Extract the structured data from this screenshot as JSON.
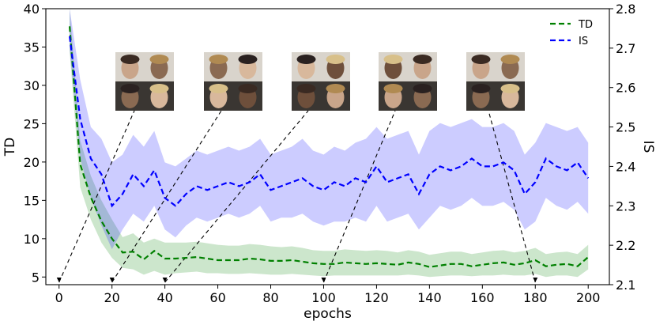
{
  "chart_data": {
    "type": "line",
    "xlabel": "epochs",
    "ylabel_left": "TD",
    "ylabel_right": "IS",
    "xlim": [
      -5,
      208
    ],
    "ylim_left": [
      4,
      40
    ],
    "ylim_right": [
      2.1,
      2.8
    ],
    "x_ticks": [
      0,
      20,
      40,
      60,
      80,
      100,
      120,
      140,
      160,
      180,
      200
    ],
    "y_left_ticks": [
      5,
      10,
      15,
      20,
      25,
      30,
      35,
      40
    ],
    "y_right_ticks": [
      2.1,
      2.2,
      2.3,
      2.4,
      2.5,
      2.6,
      2.7,
      2.8
    ],
    "x_tick_labels": [
      "0",
      "20",
      "40",
      "60",
      "80",
      "100",
      "120",
      "140",
      "160",
      "180",
      "200"
    ],
    "y_left_tick_labels": [
      "5",
      "10",
      "15",
      "20",
      "25",
      "30",
      "35",
      "40"
    ],
    "y_right_tick_labels": [
      "2.1",
      "2.2",
      "2.3",
      "2.4",
      "2.5",
      "2.6",
      "2.7",
      "2.8"
    ],
    "legend_position": "top-right",
    "grid": false,
    "x": [
      4,
      8,
      12,
      16,
      20,
      24,
      28,
      32,
      36,
      40,
      44,
      48,
      52,
      56,
      60,
      64,
      68,
      72,
      76,
      80,
      84,
      88,
      92,
      96,
      100,
      104,
      108,
      112,
      116,
      120,
      124,
      128,
      132,
      136,
      140,
      144,
      148,
      152,
      156,
      160,
      164,
      168,
      172,
      176,
      180,
      184,
      188,
      192,
      196,
      200
    ],
    "series": [
      {
        "name": "TD",
        "axis": "left",
        "color": "#008000",
        "values": [
          37.7,
          19.7,
          15.4,
          12.3,
          10.0,
          8.2,
          8.3,
          7.3,
          8.4,
          7.4,
          7.4,
          7.5,
          7.6,
          7.4,
          7.2,
          7.2,
          7.2,
          7.4,
          7.3,
          7.1,
          7.1,
          7.2,
          7.0,
          6.8,
          6.7,
          6.7,
          6.9,
          6.8,
          6.7,
          6.8,
          6.7,
          6.6,
          6.9,
          6.7,
          6.3,
          6.5,
          6.7,
          6.7,
          6.4,
          6.6,
          6.8,
          6.9,
          6.6,
          6.8,
          7.2,
          6.4,
          6.6,
          6.7,
          6.4,
          7.6
        ],
        "lower": [
          34.5,
          16.7,
          12.5,
          9.5,
          7.5,
          6.2,
          6.0,
          5.3,
          5.8,
          5.3,
          5.5,
          5.6,
          5.7,
          5.5,
          5.5,
          5.4,
          5.4,
          5.5,
          5.4,
          5.3,
          5.3,
          5.4,
          5.3,
          5.2,
          5.1,
          5.2,
          5.2,
          5.2,
          5.2,
          5.2,
          5.2,
          5.2,
          5.3,
          5.2,
          5.0,
          5.1,
          5.2,
          5.2,
          5.1,
          5.2,
          5.2,
          5.3,
          5.2,
          5.2,
          5.4,
          5.0,
          5.2,
          5.2,
          5.0,
          6.0
        ],
        "upper": [
          40.0,
          22.8,
          18.2,
          15.0,
          12.5,
          10.2,
          10.7,
          9.5,
          10.0,
          9.5,
          9.5,
          9.5,
          9.6,
          9.4,
          9.2,
          9.1,
          9.1,
          9.3,
          9.2,
          9.0,
          8.9,
          9.0,
          8.8,
          8.5,
          8.4,
          8.4,
          8.6,
          8.5,
          8.4,
          8.5,
          8.4,
          8.2,
          8.5,
          8.3,
          7.9,
          8.1,
          8.3,
          8.3,
          8.0,
          8.2,
          8.4,
          8.5,
          8.2,
          8.4,
          8.8,
          8.0,
          8.2,
          8.3,
          8.0,
          9.2
        ]
      },
      {
        "name": "IS",
        "axis": "right",
        "color": "#0000ff",
        "values": [
          2.73,
          2.52,
          2.42,
          2.38,
          2.3,
          2.33,
          2.38,
          2.35,
          2.39,
          2.32,
          2.3,
          2.33,
          2.35,
          2.34,
          2.35,
          2.36,
          2.35,
          2.36,
          2.38,
          2.34,
          2.35,
          2.36,
          2.37,
          2.35,
          2.34,
          2.36,
          2.35,
          2.37,
          2.36,
          2.4,
          2.36,
          2.37,
          2.38,
          2.33,
          2.38,
          2.4,
          2.39,
          2.4,
          2.42,
          2.4,
          2.4,
          2.41,
          2.39,
          2.33,
          2.36,
          2.42,
          2.4,
          2.39,
          2.41,
          2.37
        ],
        "lower": [
          2.7,
          2.42,
          2.32,
          2.25,
          2.19,
          2.24,
          2.28,
          2.26,
          2.3,
          2.24,
          2.22,
          2.25,
          2.27,
          2.26,
          2.27,
          2.28,
          2.27,
          2.28,
          2.3,
          2.26,
          2.27,
          2.27,
          2.28,
          2.26,
          2.25,
          2.26,
          2.26,
          2.27,
          2.26,
          2.3,
          2.26,
          2.27,
          2.28,
          2.24,
          2.27,
          2.3,
          2.29,
          2.3,
          2.32,
          2.3,
          2.3,
          2.31,
          2.29,
          2.24,
          2.26,
          2.32,
          2.3,
          2.29,
          2.31,
          2.28
        ],
        "upper": [
          2.8,
          2.62,
          2.5,
          2.47,
          2.41,
          2.43,
          2.48,
          2.45,
          2.49,
          2.41,
          2.4,
          2.42,
          2.44,
          2.43,
          2.44,
          2.45,
          2.44,
          2.45,
          2.47,
          2.43,
          2.44,
          2.45,
          2.47,
          2.44,
          2.43,
          2.45,
          2.44,
          2.46,
          2.47,
          2.5,
          2.47,
          2.48,
          2.49,
          2.43,
          2.49,
          2.51,
          2.5,
          2.51,
          2.52,
          2.5,
          2.5,
          2.51,
          2.49,
          2.43,
          2.46,
          2.51,
          2.5,
          2.49,
          2.5,
          2.46
        ]
      }
    ],
    "image_annotations": [
      {
        "epoch": 0
      },
      {
        "epoch": 20
      },
      {
        "epoch": 40
      },
      {
        "epoch": 100
      },
      {
        "epoch": 180
      }
    ]
  }
}
